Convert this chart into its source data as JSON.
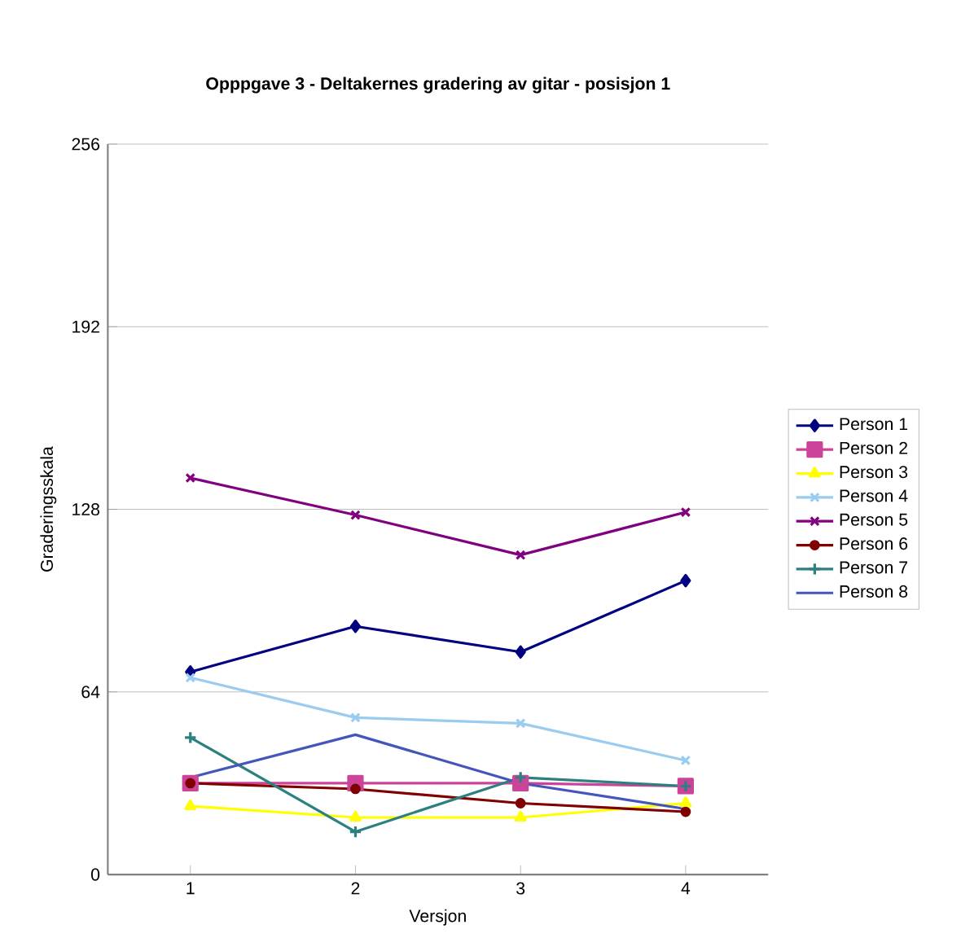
{
  "chart_data": {
    "type": "line",
    "title": "Opppgave 3 - Deltakernes gradering av gitar - posisjon 1",
    "xlabel": "Versjon",
    "ylabel": "Graderingsskala",
    "categories": [
      "1",
      "2",
      "3",
      "4"
    ],
    "series": [
      {
        "name": "Person 1",
        "color": "#000080",
        "marker": "diamond",
        "values": [
          71,
          87,
          78,
          103
        ]
      },
      {
        "name": "Person 2",
        "color": "#cc4499",
        "marker": "square",
        "values": [
          32,
          32,
          32,
          31
        ]
      },
      {
        "name": "Person 3",
        "color": "#ffff00",
        "marker": "triangle",
        "values": [
          24,
          20,
          20,
          25
        ]
      },
      {
        "name": "Person 4",
        "color": "#99ccee",
        "marker": "cross",
        "values": [
          69,
          55,
          53,
          40
        ]
      },
      {
        "name": "Person 5",
        "color": "#800080",
        "marker": "cross",
        "values": [
          139,
          126,
          112,
          127
        ]
      },
      {
        "name": "Person 6",
        "color": "#800000",
        "marker": "circle",
        "values": [
          32,
          30,
          25,
          22
        ]
      },
      {
        "name": "Person 7",
        "color": "#2e8080",
        "marker": "plus",
        "values": [
          48,
          15,
          34,
          31
        ]
      },
      {
        "name": "Person 8",
        "color": "#4455bb",
        "marker": "none",
        "values": [
          34,
          49,
          32,
          23
        ]
      }
    ],
    "ylim": [
      0,
      256
    ],
    "yticks": [
      0,
      64,
      128,
      192,
      256
    ],
    "grid": "y",
    "legend": "right",
    "line_style": "solid"
  }
}
